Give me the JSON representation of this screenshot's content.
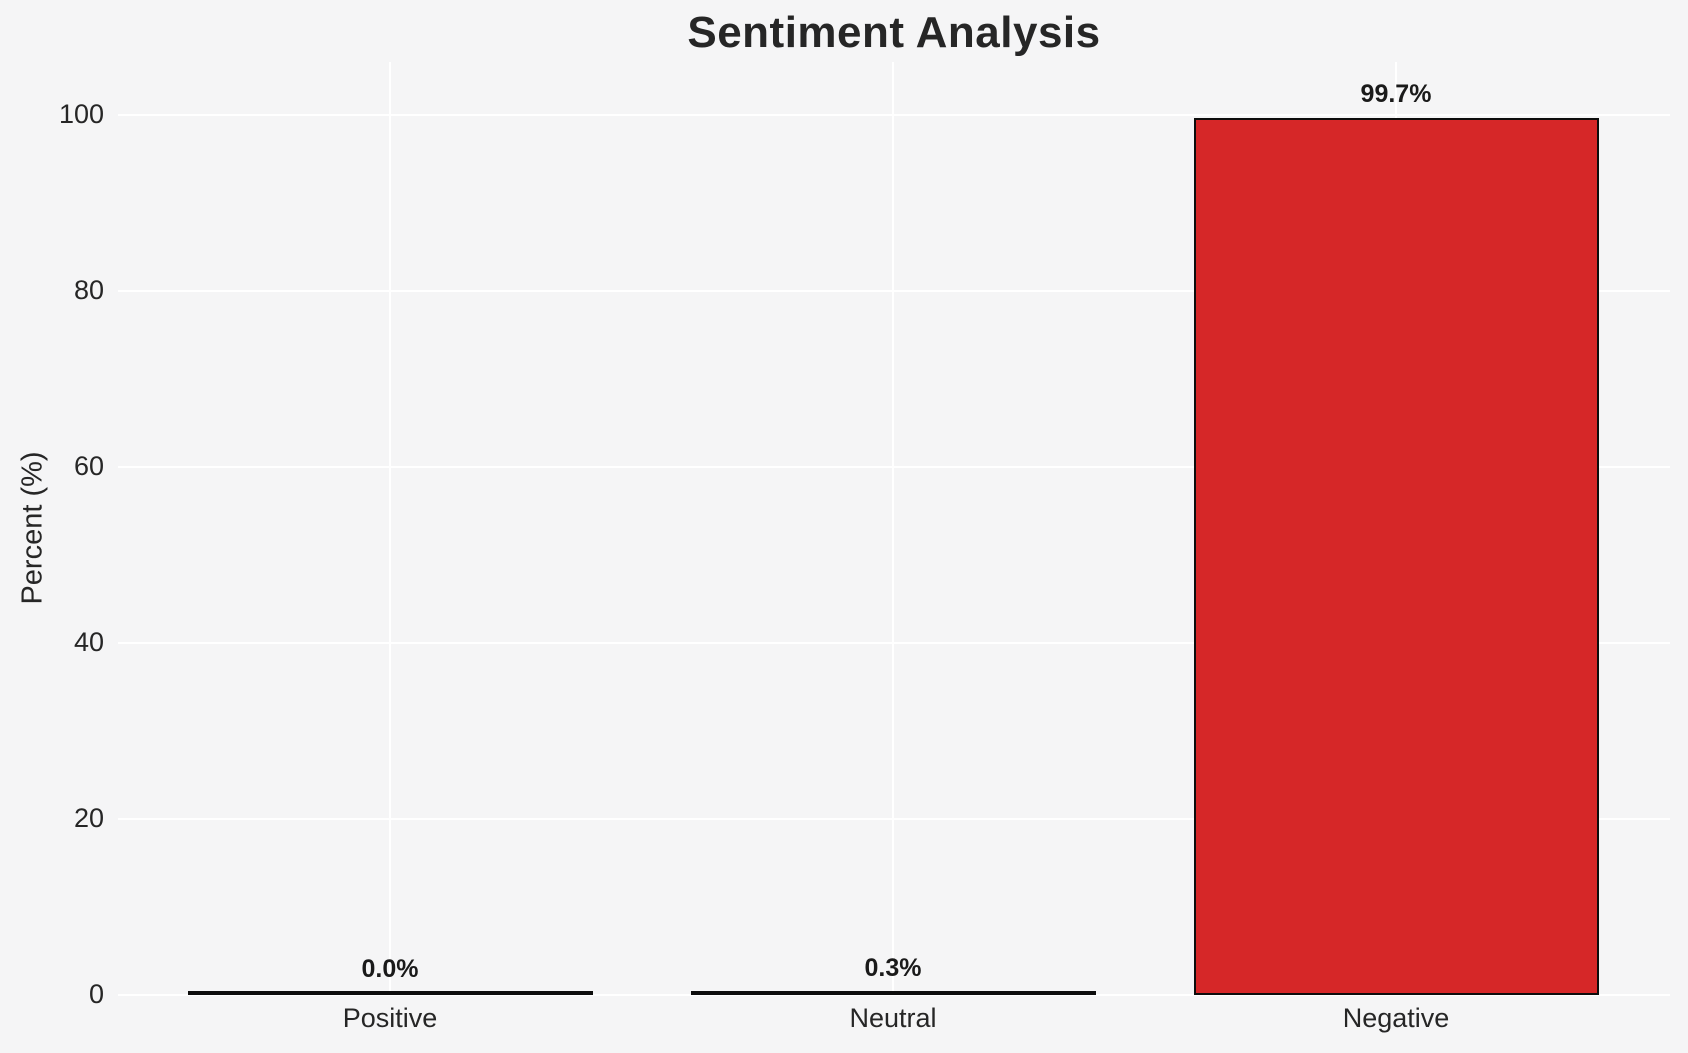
{
  "chart_data": {
    "type": "bar",
    "title": "Sentiment Analysis",
    "ylabel": "Percent (%)",
    "xlabel": "",
    "categories": [
      "Positive",
      "Neutral",
      "Negative"
    ],
    "values": [
      0.0,
      0.3,
      99.7
    ],
    "value_labels": [
      "0.0%",
      "0.3%",
      "99.7%"
    ],
    "yticks": [
      0,
      20,
      40,
      60,
      80,
      100
    ],
    "ylim": [
      0,
      106
    ],
    "grid": "on",
    "legend": "none",
    "bar_color": "#d62728",
    "bar_edge_color": "#0d0d0d",
    "background_color": "#f5f5f6",
    "gridline_color": "#ffffff",
    "text_color": "#262626"
  }
}
